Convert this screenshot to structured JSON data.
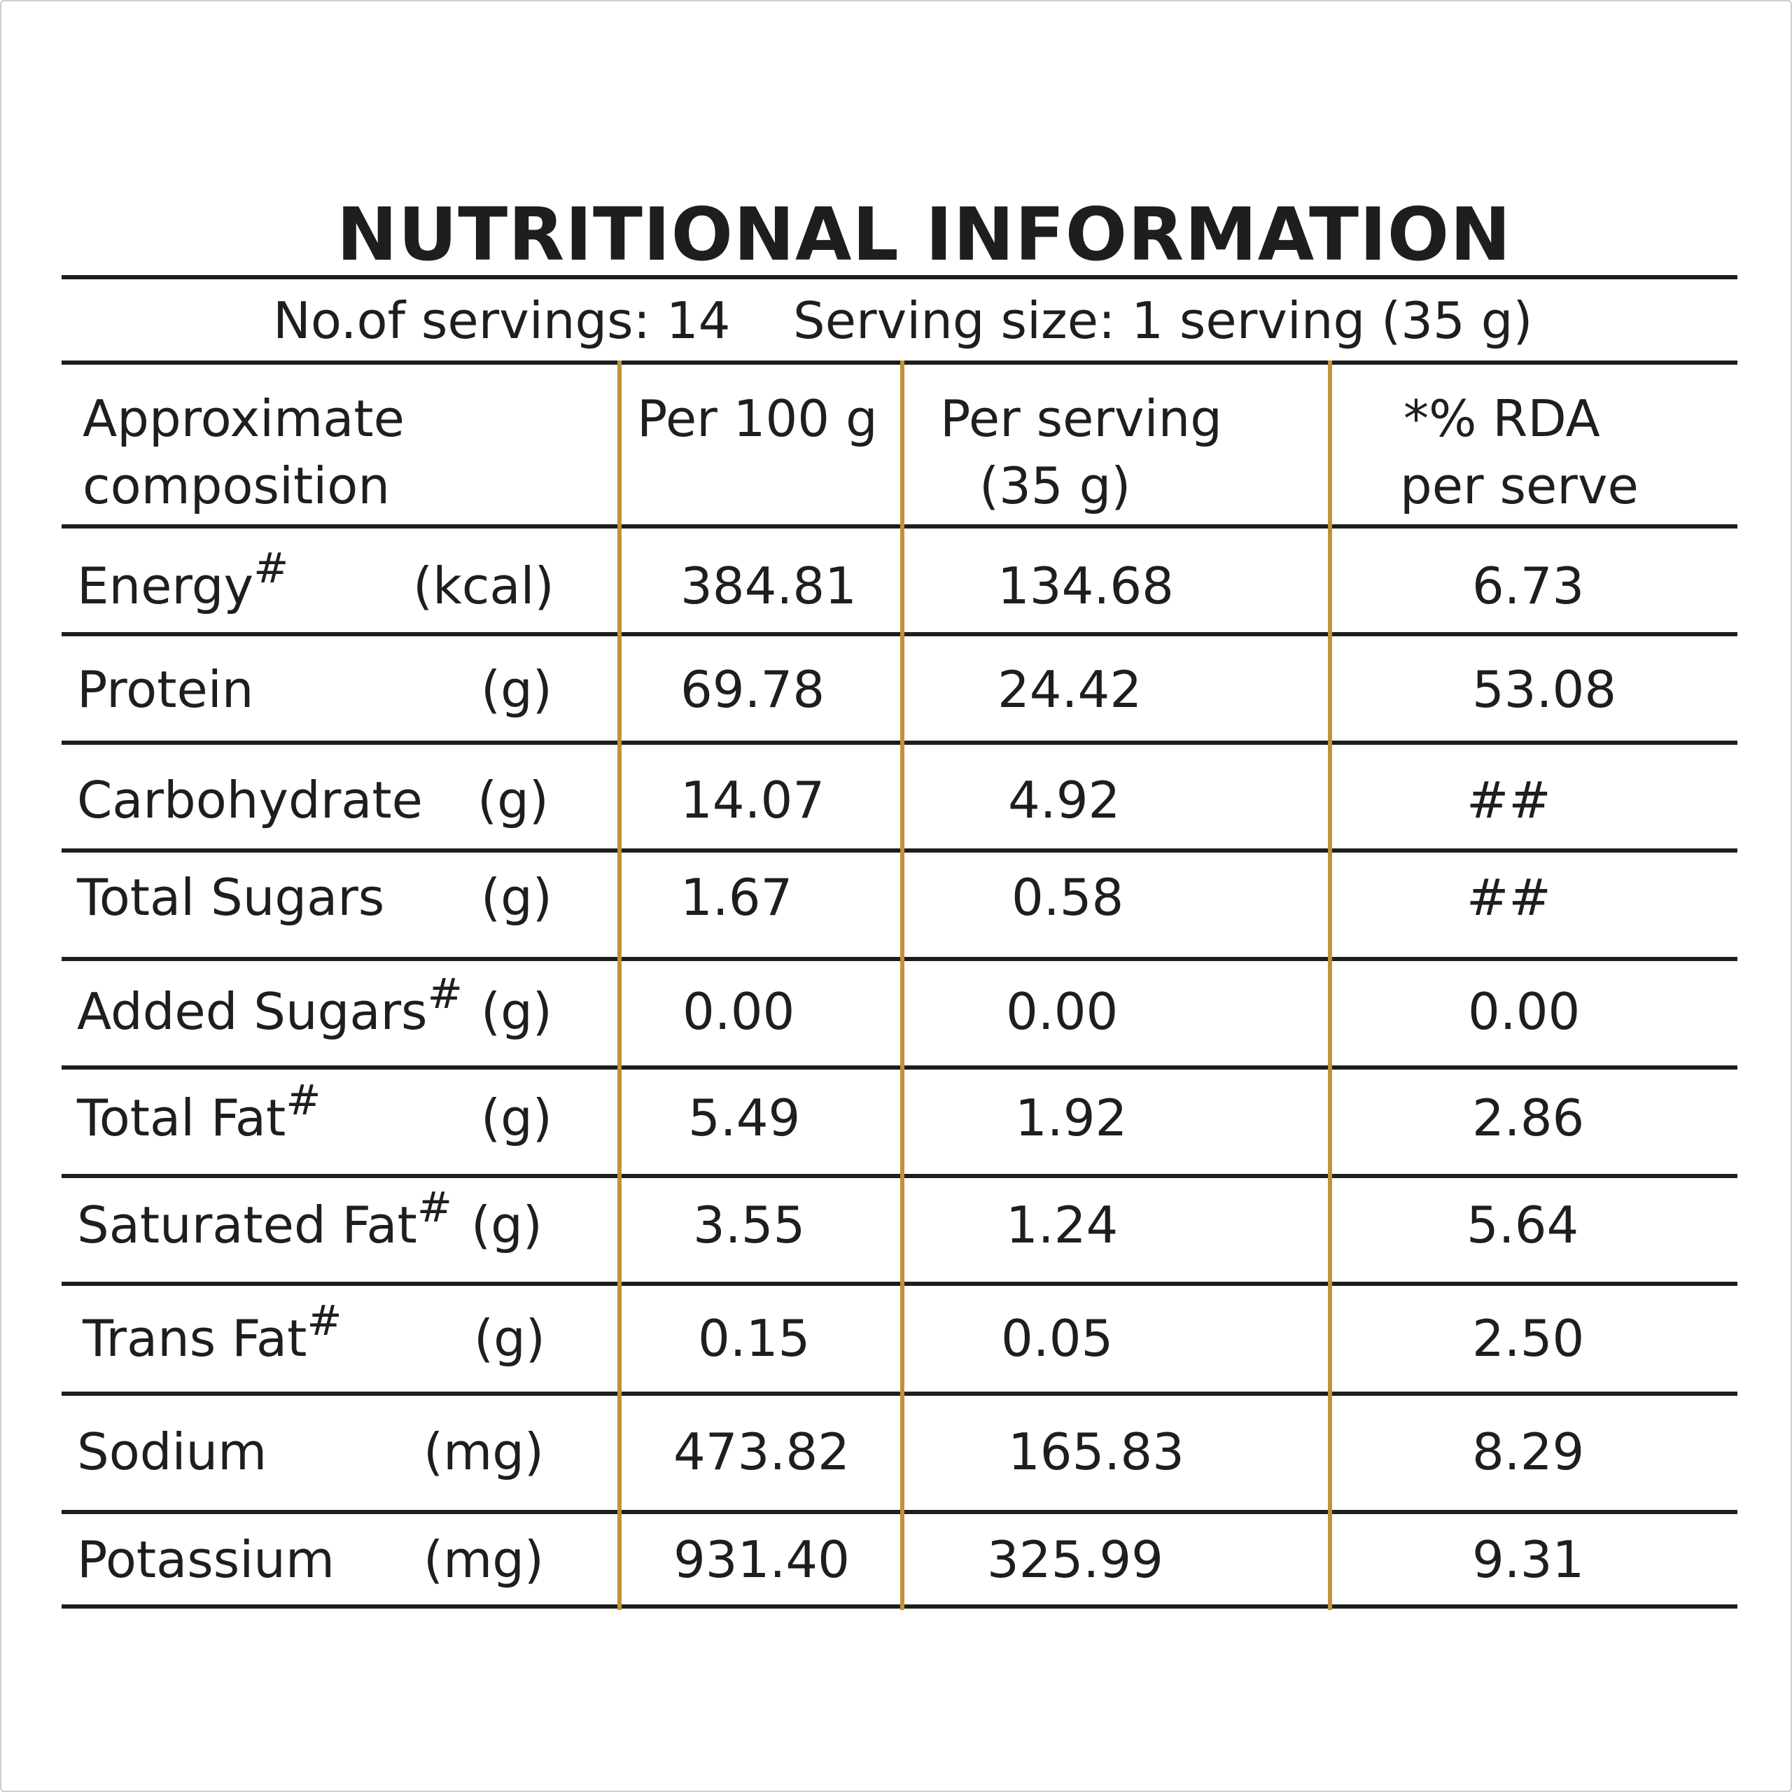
{
  "title": "NUTRITIONAL INFORMATION",
  "servings": {
    "count_text": "No.of servings: 14",
    "size_text": "Serving size: 1 serving (35 g)"
  },
  "columns": {
    "composition": [
      "Approximate",
      "composition"
    ],
    "per100": "Per 100 g",
    "per_serving": [
      "Per serving",
      "(35 g)"
    ],
    "rda": [
      "*% RDA",
      "per serve"
    ]
  },
  "rows": [
    {
      "name": "Energy",
      "mark": "#",
      "unit": "(kcal)",
      "per100": "384.81",
      "per_serving": "134.68",
      "rda": "6.73"
    },
    {
      "name": "Protein",
      "mark": "",
      "unit": "(g)",
      "per100": "69.78",
      "per_serving": "24.42",
      "rda": "53.08"
    },
    {
      "name": "Carbohydrate",
      "mark": "",
      "unit": "(g)",
      "per100": "14.07",
      "per_serving": "4.92",
      "rda": "##"
    },
    {
      "name": "Total Sugars",
      "mark": "",
      "unit": "(g)",
      "per100": "1.67",
      "per_serving": "0.58",
      "rda": "##"
    },
    {
      "name": "Added Sugars",
      "mark": "#",
      "unit": "(g)",
      "per100": "0.00",
      "per_serving": "0.00",
      "rda": "0.00"
    },
    {
      "name": "Total Fat",
      "mark": "#",
      "unit": "(g)",
      "per100": "5.49",
      "per_serving": "1.92",
      "rda": "2.86"
    },
    {
      "name": "Saturated Fat",
      "mark": "#",
      "unit": "(g)",
      "per100": "3.55",
      "per_serving": "1.24",
      "rda": "5.64"
    },
    {
      "name": "Trans Fat",
      "mark": "#",
      "unit": "(g)",
      "per100": "0.15",
      "per_serving": "0.05",
      "rda": "2.50"
    },
    {
      "name": "Sodium",
      "mark": "",
      "unit": "(mg)",
      "per100": "473.82",
      "per_serving": "165.83",
      "rda": "8.29"
    },
    {
      "name": "Potassium",
      "mark": "",
      "unit": "(mg)",
      "per100": "931.40",
      "per_serving": "325.99",
      "rda": "9.31"
    }
  ],
  "colors": {
    "text": "#1e1e1e",
    "column_divider": "#c2923a",
    "rule": "#1e1e1e"
  }
}
